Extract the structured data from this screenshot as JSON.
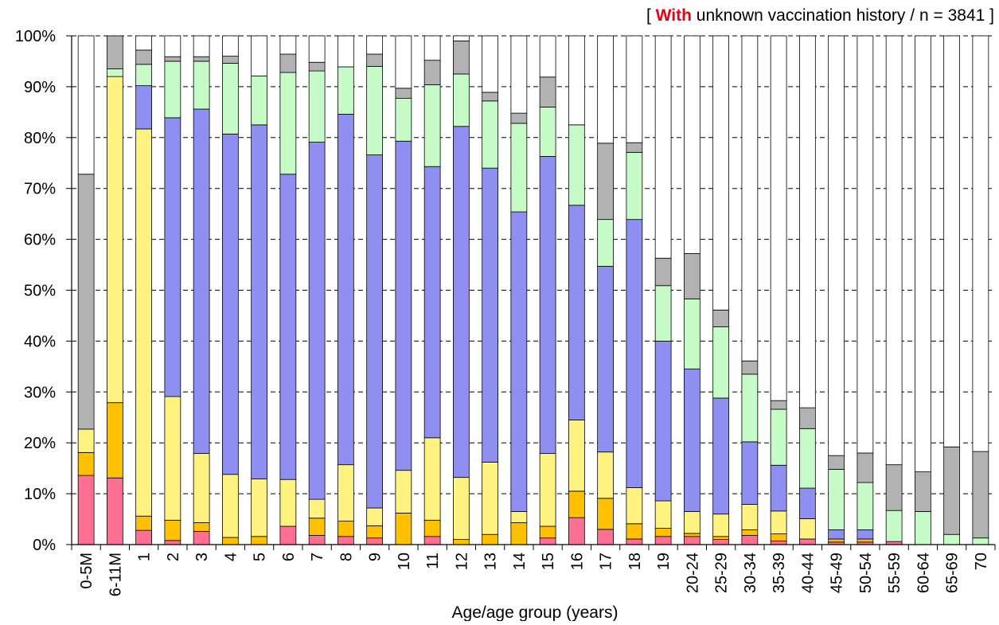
{
  "subtitle": {
    "open": "[",
    "highlight": "With",
    "rest": "unknown vaccination history",
    "separator": "/",
    "n_text": "n = 3841",
    "close": "]"
  },
  "chart_data": {
    "type": "bar",
    "stacked": true,
    "title": "",
    "xlabel": "Age/age group (years)",
    "ylabel": "",
    "ylim": [
      0,
      100
    ],
    "yticks": [
      0,
      10,
      20,
      30,
      40,
      50,
      60,
      70,
      80,
      90,
      100
    ],
    "ytick_suffix": "%",
    "grid": "horizontal-dashed",
    "categories": [
      "0-5M",
      "6-11M",
      "1",
      "2",
      "3",
      "4",
      "5",
      "6",
      "7",
      "8",
      "9",
      "10",
      "11",
      "12",
      "13",
      "14",
      "15",
      "16",
      "17",
      "18",
      "19",
      "20-24",
      "25-29",
      "30-34",
      "35-39",
      "40-44",
      "45-49",
      "50-54",
      "55-59",
      "60-64",
      "65-69",
      "70"
    ],
    "series": [
      {
        "color": "#ff6f91",
        "values": [
          13.6,
          13.1,
          2.8,
          0.8,
          2.6,
          0.0,
          0.0,
          3.6,
          1.8,
          1.6,
          1.3,
          0.0,
          1.6,
          0.0,
          0.0,
          0.0,
          1.3,
          5.3,
          3.0,
          1.1,
          1.6,
          1.6,
          1.0,
          1.8,
          0.7,
          1.1,
          0.5,
          0.5,
          0.6,
          0.0,
          0.0,
          0.0
        ]
      },
      {
        "color": "#ffc000",
        "values": [
          4.5,
          14.8,
          2.8,
          4.0,
          1.7,
          1.4,
          1.6,
          0.0,
          3.4,
          3.0,
          2.4,
          6.2,
          3.2,
          1.0,
          2.0,
          4.3,
          2.3,
          5.2,
          6.1,
          3.0,
          1.6,
          0.6,
          0.6,
          1.1,
          1.4,
          0.0,
          0.6,
          0.6,
          0.0,
          0.0,
          0.0,
          0.0
        ]
      },
      {
        "color": "#fff281",
        "values": [
          4.6,
          64.1,
          76.1,
          24.3,
          13.6,
          12.4,
          11.3,
          9.2,
          3.7,
          11.1,
          3.5,
          8.4,
          16.2,
          12.2,
          14.2,
          2.2,
          14.3,
          14.0,
          9.1,
          7.1,
          5.4,
          4.3,
          4.4,
          5.0,
          4.5,
          4.0,
          0.0,
          0.0,
          0.0,
          0.0,
          0.0,
          0.0
        ]
      },
      {
        "color": "#8f8ff1",
        "values": [
          0.0,
          0.0,
          8.5,
          54.8,
          67.7,
          66.9,
          69.6,
          60.0,
          70.2,
          68.9,
          69.4,
          64.7,
          53.3,
          69.0,
          57.8,
          58.9,
          58.4,
          42.2,
          36.5,
          52.7,
          31.4,
          28.0,
          22.8,
          12.3,
          9.0,
          6.0,
          1.8,
          1.8,
          0.0,
          0.0,
          0.0,
          0.0
        ]
      },
      {
        "color": "#c6fbc8",
        "values": [
          0.0,
          1.5,
          4.2,
          11.1,
          9.4,
          13.9,
          9.6,
          20.0,
          14.0,
          9.3,
          17.4,
          8.4,
          16.1,
          10.3,
          13.2,
          17.4,
          9.7,
          15.8,
          9.2,
          13.2,
          10.9,
          13.8,
          14.0,
          13.3,
          11.0,
          11.7,
          11.9,
          9.3,
          6.1,
          6.5,
          2.0,
          1.3
        ]
      },
      {
        "color": "#b2b2b2",
        "values": [
          50.1,
          6.5,
          2.8,
          0.9,
          0.9,
          1.4,
          0.0,
          3.6,
          1.7,
          0.0,
          2.4,
          2.0,
          4.8,
          6.5,
          1.7,
          2.0,
          5.9,
          0.0,
          15.0,
          1.9,
          5.4,
          8.9,
          3.3,
          2.6,
          1.7,
          4.1,
          2.7,
          5.8,
          9.0,
          7.8,
          17.2,
          17.0
        ]
      },
      {
        "color": "#ffffff",
        "values": [
          27.2,
          0.0,
          2.8,
          4.1,
          4.1,
          4.0,
          7.9,
          3.6,
          5.2,
          6.1,
          3.6,
          10.3,
          4.8,
          1.0,
          11.1,
          15.2,
          8.1,
          17.5,
          21.1,
          21.0,
          43.7,
          42.8,
          53.9,
          63.9,
          71.7,
          73.1,
          82.5,
          82.0,
          84.3,
          85.7,
          80.8,
          81.7
        ]
      }
    ]
  }
}
